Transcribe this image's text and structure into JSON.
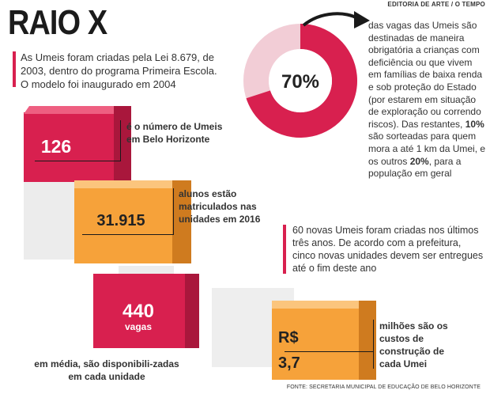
{
  "header": {
    "title": "RAIO X",
    "credit": "EDITORIA DE ARTE / O TEMPO"
  },
  "intro": "As Umeis foram criadas pela Lei 8.679, de 2003, dentro do programa Primeira Escola. O modelo foi inaugurado em 2004",
  "donut": {
    "value_label": "70%",
    "percent": 70,
    "colors": {
      "main": "#d8204f",
      "rest": "#f2cdd6",
      "accent": "#d8204f"
    },
    "text_part1": "das vagas das Umeis são destinadas de maneira obrigatória a crianças com deficiência ou que vivem em famílias de baixa renda e sob proteção do Estado (por estarem em situação de exploração ou correndo riscos). Das restantes,",
    "bold1": "10%",
    "text_part2": "são sorteadas para quem mora a até 1 km da Umei, e os outros",
    "bold2": "20%",
    "text_part3": ", para a população em geral"
  },
  "stat_126": {
    "value": "126",
    "label": "é o número de Umeis em Belo Horizonte"
  },
  "stat_students": {
    "value": "31.915",
    "label": "alunos estão matriculados nas unidades em 2016"
  },
  "new_umeis": "60 novas Umeis foram criadas nos últimos três anos. De acordo com a prefeitura, cinco novas unidades devem ser entregues até o fim deste ano",
  "stat_vagas": {
    "value": "440",
    "unit": "vagas",
    "label": "em média, são disponibili-zadas em cada unidade"
  },
  "stat_cost": {
    "value_line1": "R$",
    "value_line2": "3,7",
    "label": "milhões são os custos de construção de cada Umei"
  },
  "source": "FONTE: SECRETARIA MUNICIPAL DE EDUCAÇÃO DE BELO HORIZONTE",
  "palette": {
    "pink": "#d8204f",
    "orange": "#f6a23a",
    "light_gray": "#ececec"
  }
}
